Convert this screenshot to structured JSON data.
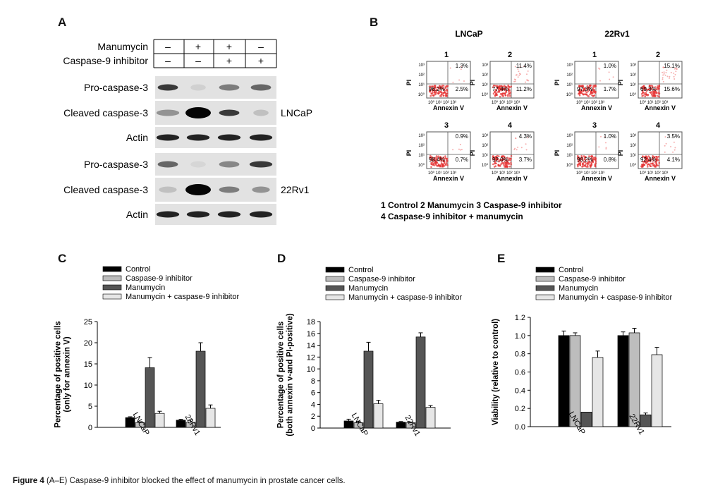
{
  "panels": [
    "A",
    "B",
    "C",
    "D",
    "E"
  ],
  "blot": {
    "treatments": [
      {
        "label": "Manumycin",
        "marks": [
          "–",
          "+",
          "+",
          "–"
        ]
      },
      {
        "label": "Caspase-9 inhibitor",
        "marks": [
          "–",
          "–",
          "+",
          "+"
        ]
      }
    ],
    "rows": [
      "Pro-caspase-3",
      "Cleaved caspase-3",
      "Actin",
      "Pro-caspase-3",
      "Cleaved caspase-3",
      "Actin"
    ],
    "cell_lines": [
      "LNCaP",
      "22Rv1"
    ]
  },
  "flow": {
    "groups": [
      {
        "name": "LNCaP",
        "plots": [
          {
            "id": "1",
            "q": [
              "1.3%",
              "96.2%",
              "2.5%"
            ]
          },
          {
            "id": "2",
            "q": [
              "11.4%",
              "77.4%",
              "11.2%"
            ]
          },
          {
            "id": "3",
            "q": [
              "0.9%",
              "98.4%",
              "0.7%"
            ]
          },
          {
            "id": "4",
            "q": [
              "4.3%",
              "92.0%",
              "3.7%"
            ]
          }
        ]
      },
      {
        "name": "22Rv1",
        "plots": [
          {
            "id": "1",
            "q": [
              "1.0%",
              "97.3%",
              "1.7%"
            ]
          },
          {
            "id": "2",
            "q": [
              "15.1%",
              "69.3%",
              "15.6%"
            ]
          },
          {
            "id": "3",
            "q": [
              "1.0%",
              "98.2%",
              "0.8%"
            ]
          },
          {
            "id": "4",
            "q": [
              "3.5%",
              "92.4%",
              "4.1%"
            ]
          }
        ]
      }
    ],
    "xlabel": "Annexin V",
    "ylabel": "PI",
    "ticks": [
      "10⁰",
      "10¹",
      "10²",
      "10³"
    ],
    "x_ticks_line": "10⁰ 10¹ 10² 10³",
    "legend_line1": "1 Control  2 Manumycin  3 Caspase-9 inhibitor",
    "legend_line2": "4 Caspase-9 inhibitor + manumycin"
  },
  "legend_entries": [
    "Control",
    "Caspase-9 inhibitor",
    "Manumycin",
    "Manumycin + caspase-9 inhibitor"
  ],
  "colors": {
    "control": "#000000",
    "casp9": "#bdbdbd",
    "manumycin": "#555555",
    "combo": "#e6e6e6"
  },
  "chart_data": [
    {
      "type": "bar",
      "panel": "C",
      "categories": [
        "LNCaP",
        "22Rv1"
      ],
      "series": [
        {
          "name": "Control",
          "values": [
            2.3,
            1.7
          ],
          "errors": [
            0.2,
            0.2
          ]
        },
        {
          "name": "Caspase-9 inhibitor",
          "values": [
            1.1,
            1.2
          ],
          "errors": [
            0.2,
            0.6
          ]
        },
        {
          "name": "Manumycin",
          "values": [
            14.1,
            18.0
          ],
          "errors": [
            2.4,
            2.0
          ]
        },
        {
          "name": "Manumycin + caspase-9 inhibitor",
          "values": [
            3.3,
            4.5
          ],
          "errors": [
            0.5,
            0.8
          ]
        }
      ],
      "ylabel": "Percentage of positive cells (only for annexin V)",
      "ylabel_lines": [
        "Percentage of positive cells",
        "(only for annexin V)"
      ],
      "ylim": [
        0,
        25
      ],
      "yticks": [
        "0",
        "5",
        "10",
        "15",
        "20",
        "25"
      ]
    },
    {
      "type": "bar",
      "panel": "D",
      "categories": [
        "LNCaP",
        "22Rv1"
      ],
      "series": [
        {
          "name": "Control",
          "values": [
            1.2,
            1.0
          ],
          "errors": [
            0.3,
            0.1
          ]
        },
        {
          "name": "Caspase-9 inhibitor",
          "values": [
            0.9,
            0.9
          ],
          "errors": [
            0.2,
            0.1
          ]
        },
        {
          "name": "Manumycin",
          "values": [
            13.0,
            15.4
          ],
          "errors": [
            1.5,
            0.7
          ]
        },
        {
          "name": "Manumycin + caspase-9 inhibitor",
          "values": [
            4.1,
            3.5
          ],
          "errors": [
            0.6,
            0.3
          ]
        }
      ],
      "ylabel": "Percentage of positive cells (both annexin v-and PI-positive)",
      "ylabel_lines": [
        "Percentage of positive cells",
        "(both annexin v-and PI-positive)"
      ],
      "ylim": [
        0,
        18
      ],
      "yticks": [
        "0",
        "2",
        "4",
        "6",
        "8",
        "10",
        "12",
        "14",
        "16",
        "18"
      ]
    },
    {
      "type": "bar",
      "panel": "E",
      "categories": [
        "LNCaP",
        "22Rv1"
      ],
      "series": [
        {
          "name": "Control",
          "values": [
            1.0,
            1.0
          ],
          "errors": [
            0.05,
            0.04
          ]
        },
        {
          "name": "Caspase-9 inhibitor",
          "values": [
            1.0,
            1.03
          ],
          "errors": [
            0.03,
            0.05
          ]
        },
        {
          "name": "Manumycin",
          "values": [
            0.16,
            0.13
          ],
          "errors": [
            0.0,
            0.02
          ]
        },
        {
          "name": "Manumycin + caspase-9 inhibitor",
          "values": [
            0.76,
            0.79
          ],
          "errors": [
            0.07,
            0.08
          ]
        }
      ],
      "ylabel": "Viability (relative to control)",
      "ylabel_lines": [
        "Viability (relative to control)"
      ],
      "ylim": [
        0,
        1.2
      ],
      "yticks": [
        "0.0",
        "0.2",
        "0.4",
        "0.6",
        "0.8",
        "1.0",
        "1.2"
      ]
    }
  ],
  "caption": {
    "prefix": "Figure 4",
    "range": "(A–E)",
    "text": " Caspase-9 inhibitor blocked the effect of manumycin in prostate cancer cells."
  }
}
